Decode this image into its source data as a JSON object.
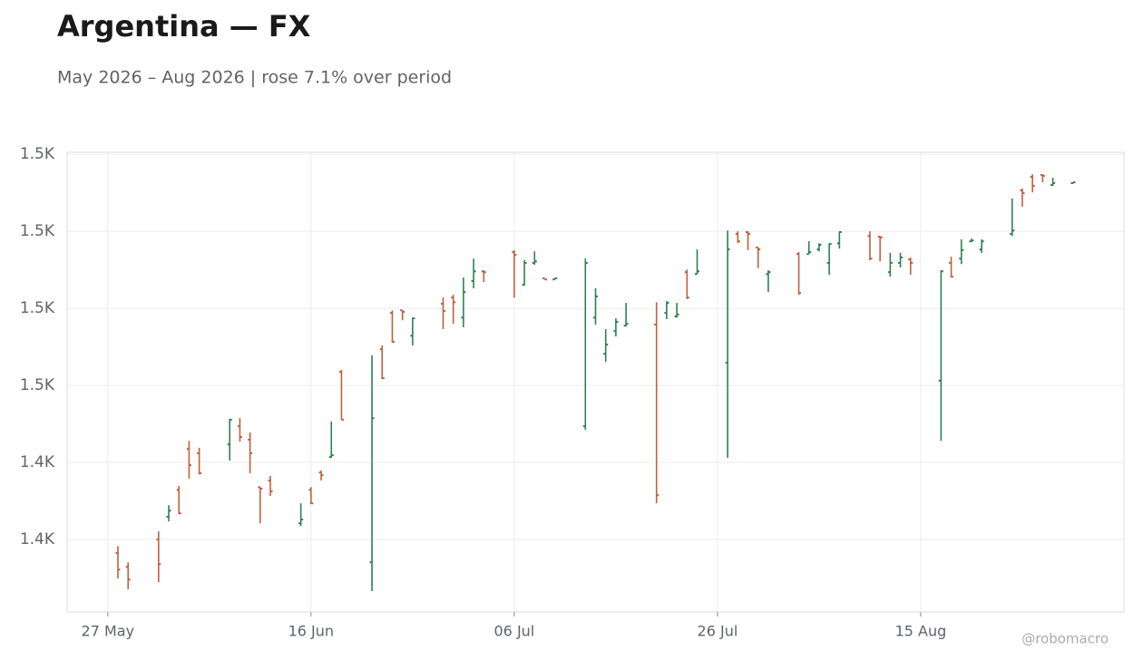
{
  "chart_data": {
    "type": "ohlc",
    "title": "Argentina — FX",
    "subtitle": "May 2026 – Aug 2026 | rose 7.1% over period",
    "watermark": "@robomacro",
    "up_color": "#2e8050",
    "down_color": "#c0603c",
    "grid": true,
    "x": [
      "2026-05-28",
      "2026-05-29",
      "2026-06-01",
      "2026-06-02",
      "2026-06-03",
      "2026-06-04",
      "2026-06-05",
      "2026-06-08",
      "2026-06-09",
      "2026-06-10",
      "2026-06-11",
      "2026-06-12",
      "2026-06-15",
      "2026-06-16",
      "2026-06-17",
      "2026-06-18",
      "2026-06-19",
      "2026-06-22",
      "2026-06-23",
      "2026-06-24",
      "2026-06-25",
      "2026-06-26",
      "2026-06-29",
      "2026-06-30",
      "2026-07-01",
      "2026-07-02",
      "2026-07-03",
      "2026-07-06",
      "2026-07-07",
      "2026-07-08",
      "2026-07-09",
      "2026-07-10",
      "2026-07-13",
      "2026-07-14",
      "2026-07-15",
      "2026-07-16",
      "2026-07-17",
      "2026-07-20",
      "2026-07-21",
      "2026-07-22",
      "2026-07-23",
      "2026-07-24",
      "2026-07-27",
      "2026-07-28",
      "2026-07-29",
      "2026-07-30",
      "2026-07-31",
      "2026-08-03",
      "2026-08-04",
      "2026-08-05",
      "2026-08-06",
      "2026-08-07",
      "2026-08-10",
      "2026-08-11",
      "2026-08-12",
      "2026-08-13",
      "2026-08-14",
      "2026-08-17",
      "2026-08-18",
      "2026-08-19",
      "2026-08-20",
      "2026-08-21",
      "2026-08-24",
      "2026-08-25",
      "2026-08-26",
      "2026-08-27",
      "2026-08-28",
      "2026-08-30"
    ],
    "open": [
      1416.5,
      1412.9,
      1420.0,
      1425.9,
      1432.9,
      1443.5,
      1442.4,
      1444.7,
      1449.4,
      1445.9,
      1433.6,
      1435.3,
      1424.2,
      1432.9,
      1437.4,
      1441.4,
      1463.5,
      1414.1,
      1469.4,
      1478.8,
      1479.5,
      1472.9,
      1481.2,
      1482.8,
      1477.6,
      1487.1,
      1489.6,
      1494.6,
      1486.1,
      1491.8,
      1487.8,
      1487.5,
      1449.4,
      1477.6,
      1468.2,
      1474.1,
      1475.5,
      1475.8,
      1478.8,
      1477.9,
      1489.4,
      1488.9,
      1465.9,
      1499.3,
      1499.8,
      1495.8,
      1488.9,
      1494.1,
      1494.1,
      1495.3,
      1491.8,
      1496.9,
      1498.8,
      1498.6,
      1489.4,
      1491.8,
      1492.7,
      1461.2,
      1491.8,
      1492.9,
      1497.4,
      1495.3,
      1499.3,
      1510.6,
      1514.1,
      1514.6,
      1512.0,
      1512.5
    ],
    "high": [
      1418.3,
      1414.1,
      1422.1,
      1428.9,
      1433.9,
      1445.6,
      1443.8,
      1451.3,
      1451.5,
      1447.8,
      1433.6,
      1436.5,
      1429.4,
      1433.6,
      1437.9,
      1450.6,
      1464.0,
      1467.8,
      1470.4,
      1479.5,
      1479.5,
      1477.6,
      1482.8,
      1483.5,
      1488.0,
      1492.9,
      1489.9,
      1495.1,
      1492.5,
      1494.8,
      1487.8,
      1487.8,
      1492.9,
      1485.2,
      1474.6,
      1477.4,
      1481.4,
      1481.6,
      1481.9,
      1481.4,
      1490.1,
      1495.3,
      1500.2,
      1500.0,
      1500.0,
      1495.8,
      1489.9,
      1494.6,
      1497.4,
      1496.9,
      1496.9,
      1500.0,
      1500.0,
      1498.8,
      1494.4,
      1494.4,
      1493.2,
      1489.9,
      1493.4,
      1497.9,
      1498.1,
      1497.9,
      1508.5,
      1511.1,
      1514.8,
      1514.8,
      1513.9,
      1512.7
    ],
    "low": [
      1409.9,
      1407.1,
      1408.9,
      1424.7,
      1426.6,
      1435.8,
      1436.9,
      1440.5,
      1445.4,
      1437.2,
      1424.2,
      1431.3,
      1423.5,
      1429.2,
      1435.3,
      1441.2,
      1451.1,
      1406.6,
      1461.6,
      1471.1,
      1476.9,
      1470.4,
      1474.6,
      1476.0,
      1475.1,
      1485.2,
      1486.8,
      1482.8,
      1485.9,
      1491.3,
      1487.5,
      1487.5,
      1448.5,
      1475.8,
      1466.1,
      1472.7,
      1475.3,
      1429.4,
      1477.2,
      1477.6,
      1482.4,
      1488.9,
      1441.2,
      1496.9,
      1495.1,
      1490.4,
      1484.2,
      1483.5,
      1494.1,
      1494.8,
      1488.7,
      1495.5,
      1492.5,
      1492.2,
      1488.2,
      1490.6,
      1488.7,
      1445.6,
      1488.0,
      1491.5,
      1497.2,
      1494.4,
      1498.8,
      1506.4,
      1510.1,
      1512.7,
      1511.8,
      1512.5
    ],
    "close": [
      1412.2,
      1409.6,
      1413.6,
      1427.5,
      1426.8,
      1439.3,
      1437.2,
      1451.1,
      1446.6,
      1442.4,
      1433.2,
      1432.5,
      1425.2,
      1429.4,
      1436.7,
      1441.9,
      1451.1,
      1451.5,
      1461.9,
      1471.3,
      1479.1,
      1477.4,
      1479.3,
      1481.6,
      1484.2,
      1489.6,
      1489.4,
      1493.9,
      1491.8,
      1492.2,
      1487.5,
      1487.8,
      1491.8,
      1483.1,
      1470.6,
      1476.5,
      1476.0,
      1431.5,
      1481.4,
      1478.4,
      1482.8,
      1489.6,
      1495.3,
      1497.4,
      1499.3,
      1495.3,
      1489.4,
      1484.0,
      1494.6,
      1496.5,
      1496.7,
      1499.8,
      1492.9,
      1498.4,
      1491.8,
      1493.2,
      1491.8,
      1489.6,
      1488.2,
      1495.1,
      1497.6,
      1497.4,
      1500.2,
      1509.9,
      1511.8,
      1514.4,
      1512.5,
      1512.7
    ],
    "xlim": [
      "2026-05-23",
      "2026-09-04"
    ],
    "xticks": [
      {
        "value": "2026-05-27",
        "label": "27 May"
      },
      {
        "value": "2026-06-16",
        "label": "16 Jun"
      },
      {
        "value": "2026-07-06",
        "label": "06 Jul"
      },
      {
        "value": "2026-07-26",
        "label": "26 Jul"
      },
      {
        "value": "2026-08-15",
        "label": "15 Aug"
      }
    ],
    "ylim": [
      1401.2,
      1520.5
    ],
    "yticks": [
      {
        "value": 1420,
        "label": "1.4K"
      },
      {
        "value": 1440,
        "label": "1.4K"
      },
      {
        "value": 1460,
        "label": "1.5K"
      },
      {
        "value": 1480,
        "label": "1.5K"
      },
      {
        "value": 1500,
        "label": "1.5K"
      },
      {
        "value": 1520,
        "label": "1.5K"
      }
    ]
  }
}
